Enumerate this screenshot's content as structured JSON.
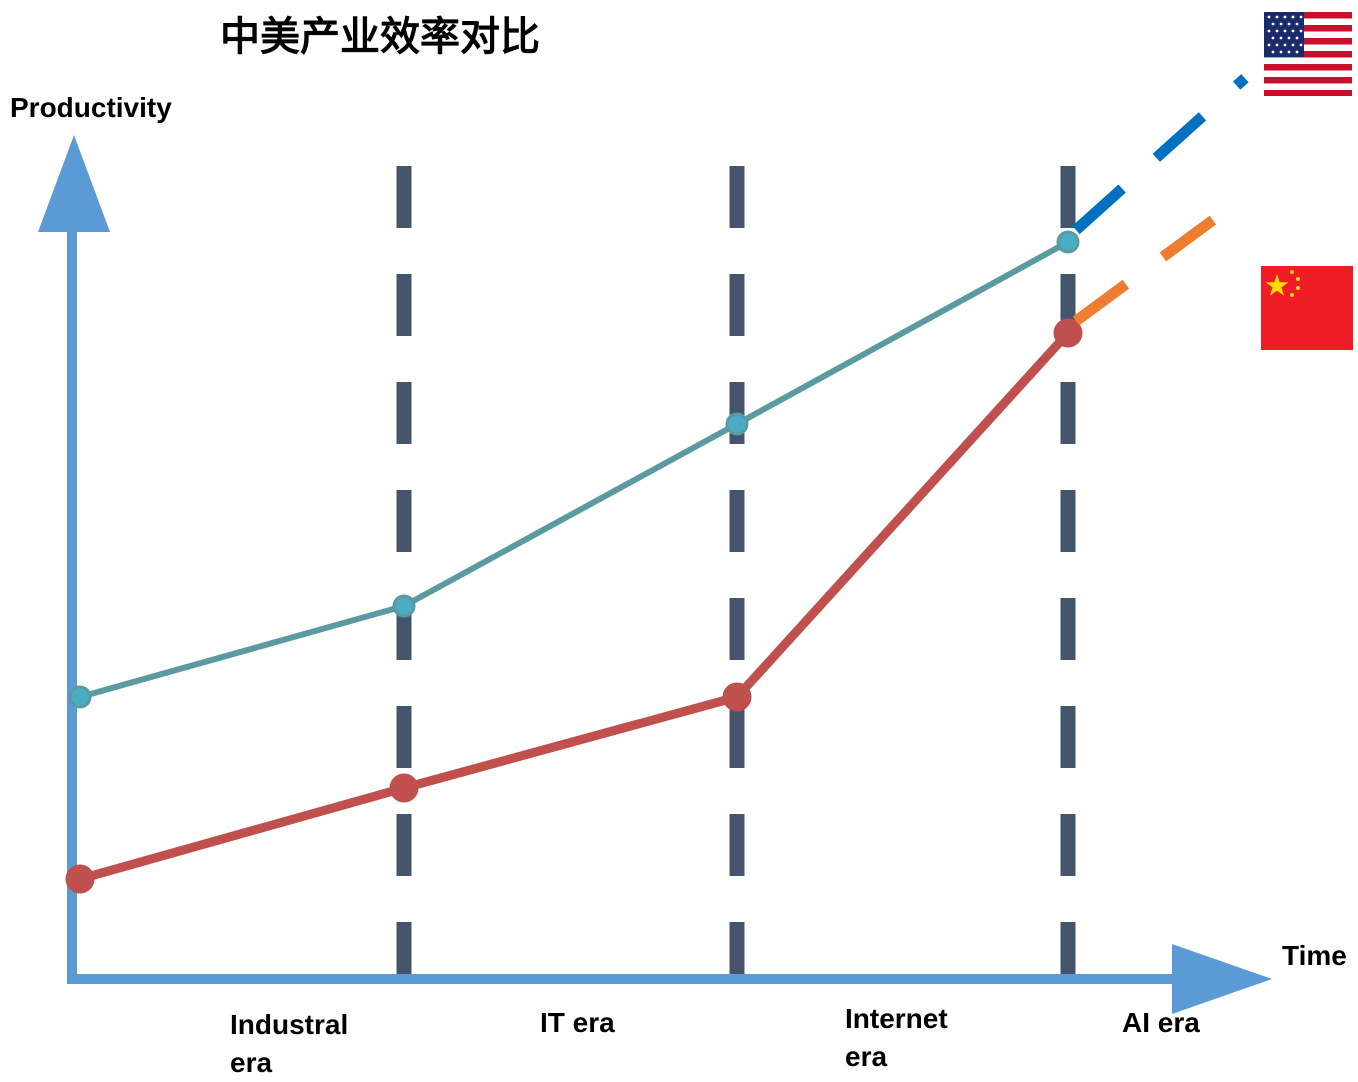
{
  "chart_data": {
    "type": "line",
    "title": "中美产业效率对比",
    "ylabel": "Productivity",
    "xlabel": "Time",
    "categories": [
      "Industral era",
      "IT era",
      "Internet era",
      "AI era"
    ],
    "x": [
      0,
      1,
      2,
      3
    ],
    "xlim": [
      0,
      3.6
    ],
    "ylim": [
      0,
      10
    ],
    "grid": false,
    "legend": "flags at right (top: USA, bottom: China)",
    "series": [
      {
        "flag": "usa-flag",
        "color": "#5b9aa0",
        "values": [
          3.0,
          4.0,
          6.0,
          8.0
        ],
        "projection": [
          8.0,
          9.8
        ],
        "projection_color": "#0070c0"
      },
      {
        "flag": "china-flag",
        "color": "#c0504d",
        "values": [
          1.0,
          2.0,
          3.0,
          7.0
        ],
        "projection": [
          7.0,
          8.5
        ],
        "projection_color": "#ed7d31"
      }
    ],
    "axis_color": "#5b9bd5",
    "divider_color": "#44546a"
  }
}
